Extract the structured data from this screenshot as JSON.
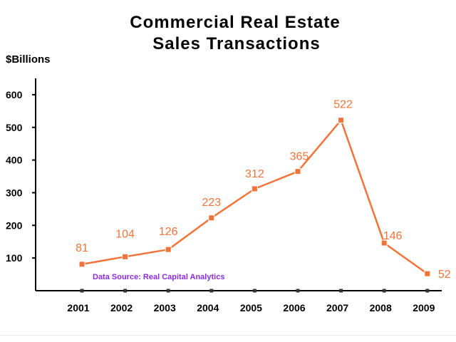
{
  "chart_data": {
    "type": "line",
    "title_lines": [
      "Commercial Real Estate",
      "Sales Transactions"
    ],
    "ylabel": "$Billions",
    "xlabel": "",
    "categories": [
      "2001",
      "2002",
      "2003",
      "2004",
      "2005",
      "2006",
      "2007",
      "2008",
      "2009"
    ],
    "values": [
      81,
      104,
      126,
      223,
      312,
      365,
      522,
      146,
      52
    ],
    "data_labels": [
      "81",
      "104",
      "126",
      "223",
      "312",
      "365",
      "522",
      "146",
      "52"
    ],
    "ylim": [
      0,
      650
    ],
    "yticks": [
      100,
      200,
      300,
      400,
      500,
      600
    ],
    "grid": false,
    "legend": "none",
    "annotation": "Data Source: Real Capital Analytics",
    "colors": {
      "line": "#f2733a",
      "marker": "#f2733a",
      "axis": "#000000",
      "annotation": "#8a2be2"
    }
  }
}
